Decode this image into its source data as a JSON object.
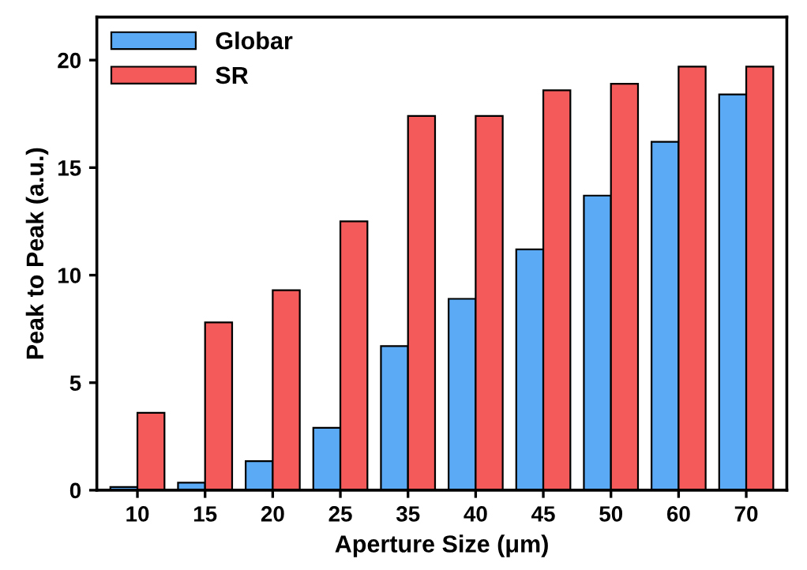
{
  "chart_data": {
    "type": "bar",
    "xlabel": "Aperture Size (μm)",
    "ylabel": "Peak to Peak (a.u.)",
    "categories": [
      "10",
      "15",
      "20",
      "25",
      "35",
      "40",
      "45",
      "50",
      "60",
      "70"
    ],
    "series": [
      {
        "name": "Globar",
        "color": "#5aaaf5",
        "values": [
          0.15,
          0.35,
          1.35,
          2.9,
          6.7,
          8.9,
          11.2,
          13.7,
          16.2,
          18.4
        ]
      },
      {
        "name": "SR",
        "color": "#f55a5a",
        "values": [
          3.6,
          7.8,
          9.3,
          12.5,
          17.4,
          17.4,
          18.6,
          18.9,
          19.7,
          19.7
        ]
      }
    ],
    "ylim": [
      0,
      22
    ],
    "yticks": [
      0,
      5,
      10,
      15,
      20
    ],
    "legend": "top left",
    "grid": false
  }
}
